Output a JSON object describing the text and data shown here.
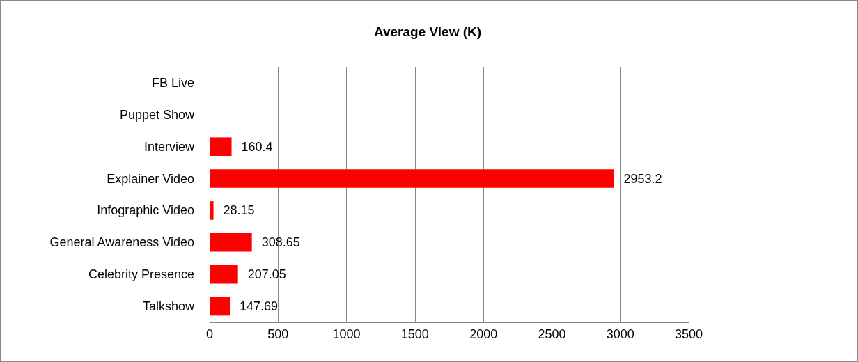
{
  "chart_data": {
    "type": "bar",
    "title": "Average View (K)",
    "orientation": "horizontal",
    "categories": [
      "FB Live",
      "Puppet Show",
      "Interview",
      "Explainer Video",
      "Infographic Video",
      "General Awareness Video",
      "Celebrity Presence",
      "Talkshow"
    ],
    "values": [
      null,
      null,
      160.4,
      2953.2,
      28.15,
      308.65,
      207.05,
      147.69
    ],
    "color": "#ff0000",
    "xlim": [
      0,
      3500
    ],
    "xticks": [
      0,
      500,
      1000,
      1500,
      2000,
      2500,
      3000,
      3500
    ],
    "grid": "x",
    "data_labels": true
  }
}
